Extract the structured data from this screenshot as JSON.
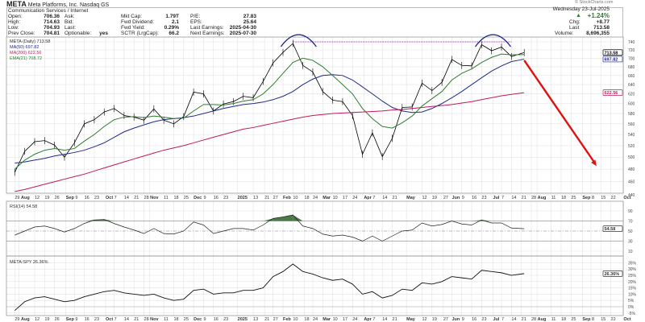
{
  "header": {
    "symbol": "META",
    "name": "Meta Platforms, Inc.",
    "exchange": "Nasdaq GS",
    "sector": "Communication Services / Internet",
    "watermark": "© StockCharts.com",
    "date": "Wednesday  23-Jul-2025",
    "pct_change": "+1.24%",
    "chg_label": "Chg:",
    "chg": "+8.77",
    "last_label": "Last",
    "last": "713.58",
    "volume_label": "Volume:",
    "volume": "8,696,355",
    "fields": [
      {
        "label": "Open:",
        "value": "706.36"
      },
      {
        "label": "High:",
        "value": "714.63"
      },
      {
        "label": "Low:",
        "value": "704.93"
      },
      {
        "label": "Prev Close:",
        "value": "704.81"
      },
      {
        "label": "Ask:",
        "value": ""
      },
      {
        "label": "Bid:",
        "value": ""
      },
      {
        "label": "Last:",
        "value": ""
      },
      {
        "label": "Optionable:",
        "value": "yes"
      },
      {
        "label": "Mkt Cap:",
        "value": "1.79T"
      },
      {
        "label": "Fwd Dividend:",
        "value": "2.1"
      },
      {
        "label": "Fwd Yield:",
        "value": "0.29%"
      },
      {
        "label": "SCTR (LrgCap):",
        "value": "66.2"
      },
      {
        "label": "P/E:",
        "value": "27.83"
      },
      {
        "label": "EPS:",
        "value": "25.64"
      },
      {
        "label": "Last Earnings:",
        "value": "2025-04-30"
      },
      {
        "label": "Next Earnings:",
        "value": "2025-07-30"
      }
    ],
    "colors": {
      "up": "#2e7d32"
    }
  },
  "chart_data": [
    {
      "type": "line",
      "panel": "price",
      "scale": "log",
      "ylim": [
        430,
        750
      ],
      "legend": {
        "main": "META (Daily) 713.58",
        "ma50": "MA(50) 697.82",
        "ma200": "MA(200) 622.56",
        "ema21": "EMA(21) 708.72"
      },
      "yticks": [
        740,
        720,
        700,
        680,
        660,
        640,
        620,
        600,
        580,
        560,
        540,
        520,
        500,
        480,
        460,
        440
      ],
      "dates": [
        "2024-07-29",
        "2024-08-05",
        "2024-08-12",
        "2024-08-19",
        "2024-08-26",
        "2024-09-02",
        "2024-09-09",
        "2024-09-16",
        "2024-09-23",
        "2024-09-30",
        "2024-10-07",
        "2024-10-14",
        "2024-10-21",
        "2024-10-28",
        "2024-11-04",
        "2024-11-11",
        "2024-11-18",
        "2024-11-25",
        "2024-12-02",
        "2024-12-09",
        "2024-12-16",
        "2024-12-23",
        "2024-12-30",
        "2025-01-06",
        "2025-01-13",
        "2025-01-20",
        "2025-01-27",
        "2025-02-03",
        "2025-02-10",
        "2025-02-17",
        "2025-02-24",
        "2025-03-03",
        "2025-03-10",
        "2025-03-17",
        "2025-03-24",
        "2025-03-31",
        "2025-04-07",
        "2025-04-14",
        "2025-04-21",
        "2025-04-28",
        "2025-05-05",
        "2025-05-12",
        "2025-05-19",
        "2025-05-26",
        "2025-06-02",
        "2025-06-09",
        "2025-06-16",
        "2025-06-23",
        "2025-06-30",
        "2025-07-07",
        "2025-07-14",
        "2025-07-23"
      ],
      "series": [
        {
          "name": "META",
          "color": "#000000",
          "values": [
            475,
            510,
            527,
            529,
            521,
            500,
            525,
            560,
            568,
            583,
            590,
            576,
            573,
            567,
            589,
            567,
            560,
            574,
            624,
            620,
            585,
            599,
            604,
            615,
            612,
            647,
            689,
            714,
            736,
            683,
            668,
            625,
            607,
            604,
            576,
            505,
            543,
            501,
            533,
            592,
            593,
            643,
            627,
            645,
            697,
            683,
            682,
            733,
            718,
            727,
            704,
            713.58
          ]
        },
        {
          "name": "MA(50)",
          "color": "#1f2a8a",
          "values": [
            490,
            492,
            495,
            498,
            502,
            505,
            508,
            512,
            518,
            525,
            535,
            545,
            552,
            558,
            564,
            568,
            570,
            572,
            575,
            580,
            585,
            590,
            594,
            598,
            600,
            603,
            608,
            615,
            625,
            640,
            652,
            660,
            662,
            660,
            650,
            635,
            620,
            605,
            592,
            585,
            582,
            583,
            590,
            600,
            612,
            625,
            640,
            655,
            670,
            682,
            692,
            697.82
          ]
        },
        {
          "name": "MA(200)",
          "color": "#c2185b",
          "values": [
            445,
            448,
            452,
            456,
            460,
            464,
            468,
            472,
            477,
            482,
            487,
            492,
            497,
            502,
            507,
            512,
            516,
            520,
            525,
            530,
            535,
            540,
            545,
            550,
            553,
            557,
            561,
            565,
            569,
            573,
            576,
            578,
            580,
            581,
            582,
            583,
            584,
            585,
            587,
            588,
            590,
            592,
            594,
            596,
            598,
            601,
            604,
            608,
            612,
            616,
            619,
            622.56
          ]
        },
        {
          "name": "EMA(21)",
          "color": "#2e7d32",
          "values": [
            480,
            495,
            505,
            512,
            515,
            512,
            515,
            528,
            540,
            555,
            568,
            573,
            574,
            572,
            575,
            573,
            570,
            571,
            585,
            598,
            598,
            597,
            600,
            605,
            608,
            620,
            640,
            665,
            690,
            700,
            695,
            680,
            660,
            640,
            620,
            590,
            570,
            555,
            552,
            562,
            575,
            595,
            610,
            625,
            650,
            665,
            675,
            690,
            702,
            710,
            708,
            708.72
          ]
        }
      ],
      "tags": [
        {
          "value": "713.58",
          "color": "#000000"
        },
        {
          "value": "697.82",
          "color": "#1f2a8a"
        },
        {
          "value": "622.56",
          "color": "#c2185b"
        }
      ],
      "annotations": {
        "resistance": {
          "price": 740,
          "from": "2025-02-10",
          "to": "2025-07-14",
          "color": "#a020c0"
        },
        "arcs": [
          {
            "center": "2025-02-14",
            "color": "#1f2a8a"
          },
          {
            "center": "2025-07-01",
            "color": "#1f2a8a"
          }
        ],
        "arrow": {
          "from": {
            "date": "2025-07-23",
            "price": 695
          },
          "to": {
            "date": "2025-09-12",
            "price": 485
          },
          "color": "#e01010"
        }
      }
    },
    {
      "type": "line",
      "panel": "rsi",
      "title": "RSI(14) 54.58",
      "ylim": [
        0,
        100
      ],
      "yticks": [
        90,
        70,
        50,
        30,
        10
      ],
      "levels": [
        70,
        50,
        30
      ],
      "tag": "54.58",
      "values": [
        42,
        50,
        58,
        60,
        55,
        48,
        55,
        65,
        72,
        73,
        65,
        58,
        52,
        45,
        55,
        45,
        44,
        50,
        68,
        62,
        45,
        50,
        55,
        55,
        52,
        62,
        75,
        78,
        82,
        60,
        55,
        44,
        40,
        42,
        38,
        30,
        40,
        30,
        40,
        50,
        52,
        66,
        60,
        63,
        70,
        64,
        62,
        72,
        66,
        66,
        56,
        54.58
      ],
      "fill_color": "#4a7a4a"
    },
    {
      "type": "line",
      "panel": "relative",
      "title": "META:SPY 26.36%",
      "ylim": [
        -6,
        38
      ],
      "yticks": [
        "35%",
        "30%",
        "25%",
        "20%",
        "15%",
        "10%",
        "5%",
        "0%",
        "-5%"
      ],
      "tag": "26.36%",
      "values": [
        -3,
        4,
        7,
        8,
        6,
        4,
        5,
        8,
        10,
        12,
        13,
        11,
        10,
        9,
        10,
        7,
        5,
        6,
        13,
        14,
        10,
        11,
        11,
        13,
        13,
        15,
        24,
        28,
        34,
        28,
        26,
        23,
        21,
        22,
        18,
        10,
        12,
        7,
        9,
        14,
        13,
        19,
        18,
        20,
        24,
        23,
        22,
        29,
        28,
        27,
        25,
        26.36
      ]
    }
  ],
  "xaxis": {
    "ticks": [
      {
        "d": "2024-07-29",
        "l": "29"
      },
      {
        "d": "2024-08-01",
        "l": "Aug",
        "b": 1
      },
      {
        "d": "2024-08-12",
        "l": "12"
      },
      {
        "d": "2024-08-19",
        "l": "19"
      },
      {
        "d": "2024-08-26",
        "l": "26"
      },
      {
        "d": "2024-09-03",
        "l": "Sep",
        "b": 1
      },
      {
        "d": "2024-09-09",
        "l": "9"
      },
      {
        "d": "2024-09-16",
        "l": "16"
      },
      {
        "d": "2024-09-23",
        "l": "23"
      },
      {
        "d": "2024-10-01",
        "l": "Oct",
        "b": 1
      },
      {
        "d": "2024-10-07",
        "l": "7"
      },
      {
        "d": "2024-10-14",
        "l": "14"
      },
      {
        "d": "2024-10-21",
        "l": "21"
      },
      {
        "d": "2024-10-28",
        "l": "28"
      },
      {
        "d": "2024-11-01",
        "l": "Nov",
        "b": 1
      },
      {
        "d": "2024-11-11",
        "l": "11"
      },
      {
        "d": "2024-11-18",
        "l": "18"
      },
      {
        "d": "2024-11-25",
        "l": "25"
      },
      {
        "d": "2024-12-02",
        "l": "Dec",
        "b": 1
      },
      {
        "d": "2024-12-09",
        "l": "9"
      },
      {
        "d": "2024-12-16",
        "l": "16"
      },
      {
        "d": "2024-12-23",
        "l": "23"
      },
      {
        "d": "2025-01-02",
        "l": "2025",
        "b": 1
      },
      {
        "d": "2025-01-13",
        "l": "13"
      },
      {
        "d": "2025-01-21",
        "l": "21"
      },
      {
        "d": "2025-01-27",
        "l": "27"
      },
      {
        "d": "2025-02-03",
        "l": "Feb",
        "b": 1
      },
      {
        "d": "2025-02-10",
        "l": "10"
      },
      {
        "d": "2025-02-18",
        "l": "18"
      },
      {
        "d": "2025-02-24",
        "l": "24"
      },
      {
        "d": "2025-03-03",
        "l": "Mar",
        "b": 1
      },
      {
        "d": "2025-03-10",
        "l": "10"
      },
      {
        "d": "2025-03-17",
        "l": "17"
      },
      {
        "d": "2025-03-24",
        "l": "24"
      },
      {
        "d": "2025-04-01",
        "l": "Apr",
        "b": 1
      },
      {
        "d": "2025-04-07",
        "l": "7"
      },
      {
        "d": "2025-04-14",
        "l": "14"
      },
      {
        "d": "2025-04-21",
        "l": "21"
      },
      {
        "d": "2025-05-01",
        "l": "May",
        "b": 1
      },
      {
        "d": "2025-05-12",
        "l": "12"
      },
      {
        "d": "2025-05-19",
        "l": "19"
      },
      {
        "d": "2025-05-27",
        "l": "27"
      },
      {
        "d": "2025-06-02",
        "l": "Jun",
        "b": 1
      },
      {
        "d": "2025-06-09",
        "l": "9"
      },
      {
        "d": "2025-06-16",
        "l": "16"
      },
      {
        "d": "2025-06-23",
        "l": "23"
      },
      {
        "d": "2025-07-01",
        "l": "Jul",
        "b": 1
      },
      {
        "d": "2025-07-07",
        "l": "7"
      },
      {
        "d": "2025-07-14",
        "l": "14"
      },
      {
        "d": "2025-07-21",
        "l": "21"
      },
      {
        "d": "2025-07-28",
        "l": "28"
      },
      {
        "d": "2025-08-01",
        "l": "Aug",
        "b": 1
      },
      {
        "d": "2025-08-11",
        "l": "11"
      },
      {
        "d": "2025-08-18",
        "l": "18"
      },
      {
        "d": "2025-08-25",
        "l": "25"
      },
      {
        "d": "2025-09-02",
        "l": "Sep",
        "b": 1
      },
      {
        "d": "2025-09-08",
        "l": "8"
      },
      {
        "d": "2025-09-15",
        "l": "15"
      },
      {
        "d": "2025-09-22",
        "l": "22"
      },
      {
        "d": "2025-10-01",
        "l": "Oct",
        "b": 1
      }
    ]
  }
}
